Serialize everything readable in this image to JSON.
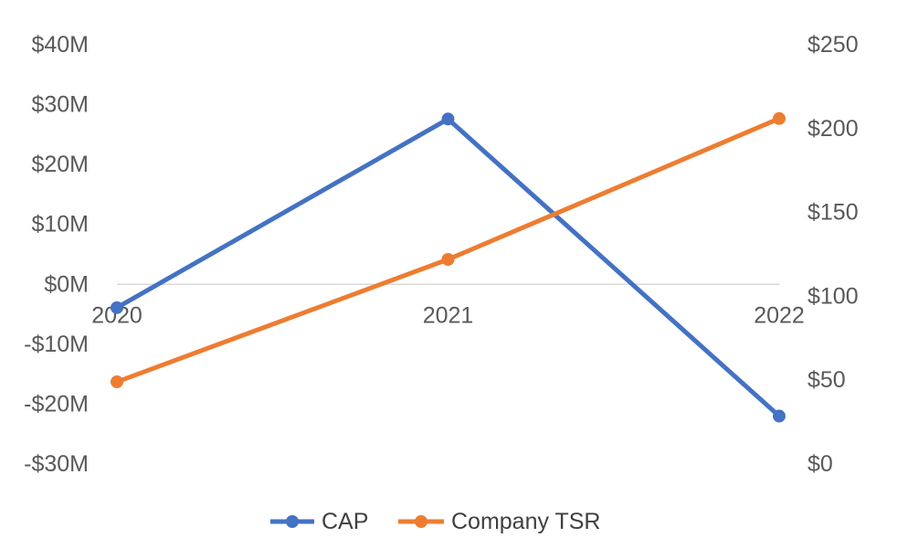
{
  "chart_data": {
    "type": "line",
    "categories": [
      "2020",
      "2021",
      "2022"
    ],
    "title": "",
    "xlabel": "",
    "grid": false,
    "legend_position": "bottom",
    "y_left": {
      "ticks": [
        "$40M",
        "$30M",
        "$20M",
        "$10M",
        "$0M",
        "-$10M",
        "-$20M",
        "-$30M"
      ],
      "tick_values": [
        40,
        30,
        20,
        10,
        0,
        -10,
        -20,
        -30
      ],
      "ylim": [
        -30,
        40
      ]
    },
    "y_right": {
      "ticks": [
        "$250",
        "$200",
        "$150",
        "$100",
        "$50",
        "$0"
      ],
      "tick_values": [
        250,
        200,
        150,
        100,
        50,
        0
      ],
      "ylim": [
        0,
        250
      ]
    },
    "series": [
      {
        "name": "CAP",
        "axis": "left",
        "color": "#4472C4",
        "values": [
          -3.9,
          27.6,
          -22
        ]
      },
      {
        "name": "Company TSR",
        "axis": "right",
        "color": "#ED7D31",
        "values": [
          49,
          122,
          206
        ]
      }
    ],
    "zero_line_color": "#D9D9D9"
  }
}
